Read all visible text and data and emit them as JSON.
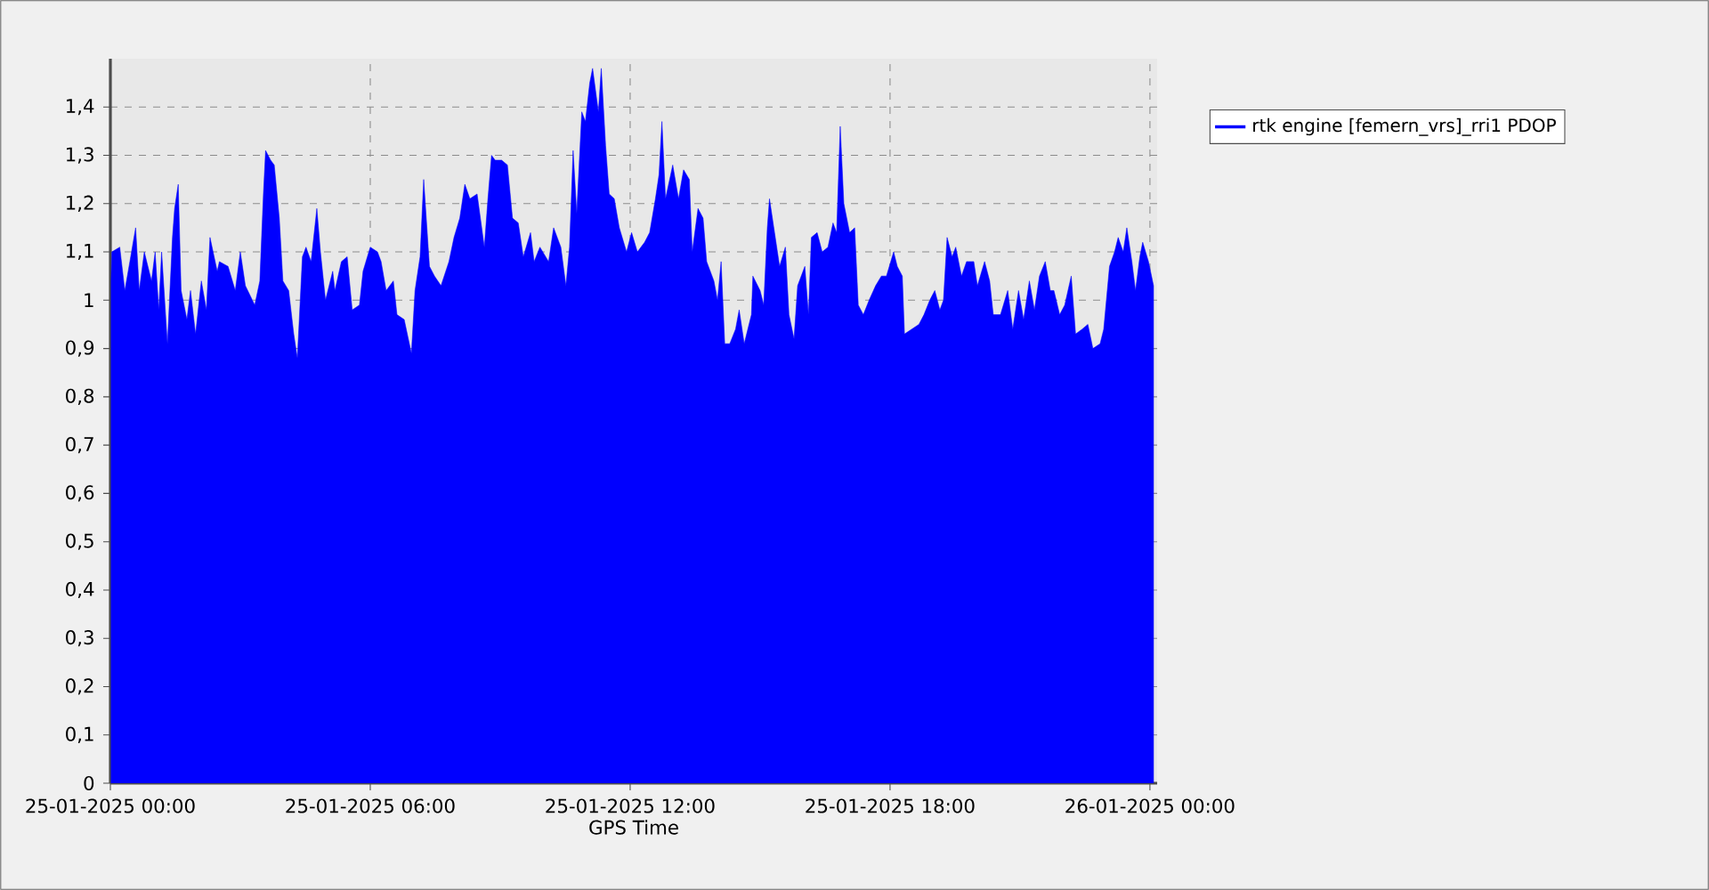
{
  "chart_data": {
    "type": "area",
    "xlabel": "GPS Time",
    "legend": "top right",
    "grid": true,
    "marker": "none",
    "line_style": "solid",
    "xlim": [
      "2025-01-25T00:00",
      "2025-01-26T00:10"
    ],
    "ylim": [
      0,
      1.5
    ],
    "xticks": [
      {
        "value": "2025-01-25T00:00",
        "label": "25-01-2025 00:00"
      },
      {
        "value": "2025-01-25T06:00",
        "label": "25-01-2025 06:00"
      },
      {
        "value": "2025-01-25T12:00",
        "label": "25-01-2025 12:00"
      },
      {
        "value": "2025-01-25T18:00",
        "label": "25-01-2025 18:00"
      },
      {
        "value": "2025-01-26T00:00",
        "label": "26-01-2025 00:00"
      }
    ],
    "yticks": [
      0,
      {
        "value": 0.1,
        "label": "0,1"
      },
      {
        "value": 0.2,
        "label": "0,2"
      },
      {
        "value": 0.3,
        "label": "0,3"
      },
      {
        "value": 0.4,
        "label": "0,4"
      },
      {
        "value": 0.5,
        "label": "0,5"
      },
      {
        "value": 0.6,
        "label": "0,6"
      },
      {
        "value": 0.7,
        "label": "0,7"
      },
      {
        "value": 0.8,
        "label": "0,8"
      },
      {
        "value": 0.9,
        "label": "0,9"
      },
      1,
      {
        "value": 1.1,
        "label": "1,1"
      },
      {
        "value": 1.2,
        "label": "1,2"
      },
      {
        "value": 1.3,
        "label": "1,3"
      },
      {
        "value": 1.4,
        "label": "1,4"
      }
    ],
    "series": [
      {
        "name": "rtk engine [femern_vrs]_rri1 PDOP",
        "color": "#0000ff",
        "x": [
          "2025-01-25T00:01",
          "2025-01-25T00:02",
          "2025-01-25T00:13",
          "2025-01-25T00:20",
          "2025-01-25T00:27",
          "2025-01-25T00:35",
          "2025-01-25T00:40",
          "2025-01-25T00:47",
          "2025-01-25T00:57",
          "2025-01-25T01:02",
          "2025-01-25T01:07",
          "2025-01-25T01:11",
          "2025-01-25T01:19",
          "2025-01-25T01:26",
          "2025-01-25T01:29",
          "2025-01-25T01:34",
          "2025-01-25T01:38",
          "2025-01-25T01:46",
          "2025-01-25T01:51",
          "2025-01-25T01:58",
          "2025-01-25T02:06",
          "2025-01-25T02:13",
          "2025-01-25T02:18",
          "2025-01-25T02:28",
          "2025-01-25T02:31",
          "2025-01-25T02:43",
          "2025-01-25T02:53",
          "2025-01-25T03:00",
          "2025-01-25T03:07",
          "2025-01-25T03:20",
          "2025-01-25T03:27",
          "2025-01-25T03:32",
          "2025-01-25T03:35",
          "2025-01-25T03:42",
          "2025-01-25T03:47",
          "2025-01-25T03:54",
          "2025-01-25T03:59",
          "2025-01-25T04:07",
          "2025-01-25T04:14",
          "2025-01-25T04:19",
          "2025-01-25T04:26",
          "2025-01-25T04:31",
          "2025-01-25T04:38",
          "2025-01-25T04:46",
          "2025-01-25T04:51",
          "2025-01-25T04:58",
          "2025-01-25T05:08",
          "2025-01-25T05:11",
          "2025-01-25T05:20",
          "2025-01-25T05:28",
          "2025-01-25T05:35",
          "2025-01-25T05:45",
          "2025-01-25T05:50",
          "2025-01-25T06:00",
          "2025-01-25T06:10",
          "2025-01-25T06:15",
          "2025-01-25T06:22",
          "2025-01-25T06:32",
          "2025-01-25T06:37",
          "2025-01-25T06:47",
          "2025-01-25T06:57",
          "2025-01-25T07:02",
          "2025-01-25T07:09",
          "2025-01-25T07:14",
          "2025-01-25T07:22",
          "2025-01-25T07:29",
          "2025-01-25T07:38",
          "2025-01-25T07:49",
          "2025-01-25T07:56",
          "2025-01-25T08:04",
          "2025-01-25T08:11",
          "2025-01-25T08:18",
          "2025-01-25T08:28",
          "2025-01-25T08:38",
          "2025-01-25T08:43",
          "2025-01-25T08:48",
          "2025-01-25T08:53",
          "2025-01-25T09:02",
          "2025-01-25T09:10",
          "2025-01-25T09:17",
          "2025-01-25T09:25",
          "2025-01-25T09:32",
          "2025-01-25T09:42",
          "2025-01-25T09:47",
          "2025-01-25T09:55",
          "2025-01-25T10:07",
          "2025-01-25T10:14",
          "2025-01-25T10:24",
          "2025-01-25T10:31",
          "2025-01-25T10:36",
          "2025-01-25T10:41",
          "2025-01-25T10:46",
          "2025-01-25T10:53",
          "2025-01-25T10:58",
          "2025-01-25T11:04",
          "2025-01-25T11:08",
          "2025-01-25T11:16",
          "2025-01-25T11:20",
          "2025-01-25T11:26",
          "2025-01-25T11:31",
          "2025-01-25T11:38",
          "2025-01-25T11:45",
          "2025-01-25T11:55",
          "2025-01-25T12:02",
          "2025-01-25T12:10",
          "2025-01-25T12:20",
          "2025-01-25T12:27",
          "2025-01-25T12:35",
          "2025-01-25T12:40",
          "2025-01-25T12:44",
          "2025-01-25T12:49",
          "2025-01-25T12:59",
          "2025-01-25T13:07",
          "2025-01-25T13:14",
          "2025-01-25T13:22",
          "2025-01-25T13:26",
          "2025-01-25T13:34",
          "2025-01-25T13:41",
          "2025-01-25T13:46",
          "2025-01-25T13:56",
          "2025-01-25T14:01",
          "2025-01-25T14:06",
          "2025-01-25T14:11",
          "2025-01-25T14:18",
          "2025-01-25T14:26",
          "2025-01-25T14:31",
          "2025-01-25T14:38",
          "2025-01-25T14:48",
          "2025-01-25T14:50",
          "2025-01-25T15:00",
          "2025-01-25T15:05",
          "2025-01-25T15:10",
          "2025-01-25T15:13",
          "2025-01-25T15:20",
          "2025-01-25T15:27",
          "2025-01-25T15:35",
          "2025-01-25T15:40",
          "2025-01-25T15:47",
          "2025-01-25T15:52",
          "2025-01-25T16:02",
          "2025-01-25T16:07",
          "2025-01-25T16:11",
          "2025-01-25T16:19",
          "2025-01-25T16:26",
          "2025-01-25T16:34",
          "2025-01-25T16:41",
          "2025-01-25T16:46",
          "2025-01-25T16:51",
          "2025-01-25T16:56",
          "2025-01-25T17:04",
          "2025-01-25T17:11",
          "2025-01-25T17:16",
          "2025-01-25T17:23",
          "2025-01-25T17:31",
          "2025-01-25T17:40",
          "2025-01-25T17:48",
          "2025-01-25T17:55",
          "2025-01-25T18:05",
          "2025-01-25T18:10",
          "2025-01-25T18:17",
          "2025-01-25T18:20",
          "2025-01-25T18:30",
          "2025-01-25T18:40",
          "2025-01-25T18:47",
          "2025-01-25T18:55",
          "2025-01-25T19:02",
          "2025-01-25T19:09",
          "2025-01-25T19:14",
          "2025-01-25T19:19",
          "2025-01-25T19:26",
          "2025-01-25T19:31",
          "2025-01-25T19:39",
          "2025-01-25T19:46",
          "2025-01-25T19:56",
          "2025-01-25T20:01",
          "2025-01-25T20:11",
          "2025-01-25T20:18",
          "2025-01-25T20:23",
          "2025-01-25T20:33",
          "2025-01-25T20:43",
          "2025-01-25T20:50",
          "2025-01-25T20:58",
          "2025-01-25T21:05",
          "2025-01-25T21:13",
          "2025-01-25T21:20",
          "2025-01-25T21:27",
          "2025-01-25T21:35",
          "2025-01-25T21:42",
          "2025-01-25T21:47",
          "2025-01-25T21:55",
          "2025-01-25T22:02",
          "2025-01-25T22:11",
          "2025-01-25T22:17",
          "2025-01-25T22:26",
          "2025-01-25T22:34",
          "2025-01-25T22:41",
          "2025-01-25T22:51",
          "2025-01-25T22:56",
          "2025-01-25T23:04",
          "2025-01-25T23:11",
          "2025-01-25T23:16",
          "2025-01-25T23:23",
          "2025-01-25T23:28",
          "2025-01-25T23:35",
          "2025-01-25T23:40",
          "2025-01-25T23:46",
          "2025-01-25T23:50",
          "2025-01-25T23:58",
          "2025-01-26T00:05"
        ],
        "values": [
          1.04,
          1.1,
          1.11,
          1.02,
          1.08,
          1.15,
          1.02,
          1.1,
          1.04,
          1.1,
          0.98,
          1.1,
          0.91,
          1.13,
          1.19,
          1.24,
          1.02,
          0.96,
          1.02,
          0.93,
          1.04,
          0.98,
          1.13,
          1.06,
          1.08,
          1.07,
          1.02,
          1.1,
          1.03,
          0.99,
          1.04,
          1.22,
          1.31,
          1.29,
          1.28,
          1.17,
          1.04,
          1.02,
          0.93,
          0.88,
          1.09,
          1.11,
          1.08,
          1.19,
          1.1,
          1.0,
          1.06,
          1.02,
          1.08,
          1.09,
          0.98,
          0.99,
          1.06,
          1.11,
          1.1,
          1.08,
          1.02,
          1.04,
          0.97,
          0.96,
          0.89,
          1.02,
          1.09,
          1.25,
          1.07,
          1.05,
          1.03,
          1.08,
          1.13,
          1.17,
          1.24,
          1.21,
          1.22,
          1.11,
          1.21,
          1.3,
          1.29,
          1.29,
          1.28,
          1.17,
          1.16,
          1.09,
          1.14,
          1.08,
          1.11,
          1.08,
          1.15,
          1.11,
          1.03,
          1.11,
          1.31,
          1.18,
          1.39,
          1.37,
          1.45,
          1.48,
          1.39,
          1.48,
          1.32,
          1.22,
          1.21,
          1.15,
          1.1,
          1.14,
          1.1,
          1.12,
          1.14,
          1.21,
          1.26,
          1.37,
          1.21,
          1.28,
          1.21,
          1.27,
          1.25,
          1.1,
          1.19,
          1.17,
          1.08,
          1.04,
          1.0,
          1.08,
          0.91,
          0.91,
          0.94,
          0.98,
          0.91,
          0.97,
          1.05,
          1.02,
          0.99,
          1.15,
          1.21,
          1.14,
          1.07,
          1.11,
          0.97,
          0.92,
          1.03,
          1.07,
          0.97,
          1.13,
          1.14,
          1.1,
          1.11,
          1.16,
          1.14,
          1.36,
          1.2,
          1.14,
          1.15,
          0.99,
          0.97,
          1.0,
          1.03,
          1.05,
          1.05,
          1.1,
          1.07,
          1.05,
          0.93,
          0.94,
          0.95,
          0.97,
          1.0,
          1.02,
          0.98,
          1.0,
          1.13,
          1.09,
          1.11,
          1.05,
          1.08,
          1.08,
          1.03,
          1.08,
          1.04,
          0.97,
          0.97,
          1.02,
          0.94,
          1.02,
          0.96,
          1.04,
          0.98,
          1.05,
          1.08,
          1.02,
          1.02,
          0.97,
          0.99,
          1.05,
          0.93,
          0.94,
          0.95,
          0.9,
          0.91,
          0.94,
          1.07,
          1.1,
          1.13,
          1.1,
          1.15,
          1.08,
          1.02,
          1.09,
          1.12,
          1.08,
          1.03
        ]
      }
    ]
  }
}
